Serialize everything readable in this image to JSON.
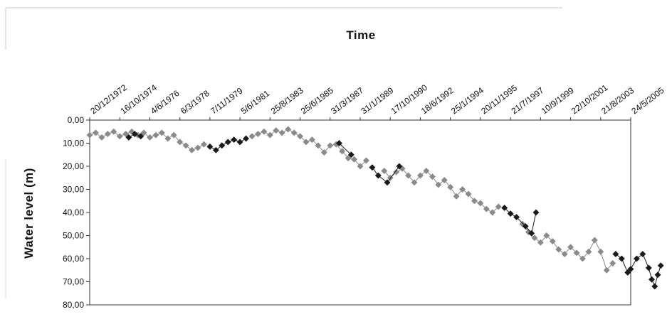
{
  "chart_data": {
    "type": "scatter",
    "title": "",
    "xlabel": "Time",
    "ylabel": "Water level (m)",
    "x_axis_position": "top",
    "y_axis_inverted": true,
    "ylim": [
      0,
      80
    ],
    "y_ticks": [
      "0,00",
      "10,00",
      "20,00",
      "30,00",
      "40,00",
      "50,00",
      "60,00",
      "70,00",
      "80,00"
    ],
    "x_ticks": [
      "20/12/1972",
      "16/10/1974",
      "4/6/1976",
      "6/3/1978",
      "7/11/1979",
      "5/6/1981",
      "25/8/1983",
      "25/6/1985",
      "31/3/1987",
      "31/1/1989",
      "17/10/1990",
      "18/6/1992",
      "25/1/1994",
      "20/11/1995",
      "21/7/1997",
      "10/9/1999",
      "22/10/2001",
      "21/8/2003",
      "24/5/2005"
    ],
    "grid": false,
    "legend": "none",
    "marker": "diamond",
    "colors": {
      "series_gray": "#8a8a8a",
      "series_black": "#1a1a1a"
    },
    "series": [
      {
        "color": "series_gray",
        "points": [
          [
            0.0,
            6.5
          ],
          [
            0.2,
            5.5
          ],
          [
            0.4,
            7.5
          ],
          [
            0.6,
            6.0
          ],
          [
            0.8,
            5.0
          ],
          [
            1.0,
            7.0
          ],
          [
            1.2,
            6.0
          ],
          [
            1.4,
            5.0
          ],
          [
            1.6,
            6.5
          ],
          [
            1.8,
            5.5
          ],
          [
            2.0,
            7.5
          ],
          [
            2.2,
            6.5
          ],
          [
            2.4,
            5.5
          ],
          [
            2.6,
            8.0
          ],
          [
            2.8,
            6.5
          ],
          [
            3.0,
            9.5
          ],
          [
            3.2,
            11.0
          ],
          [
            3.4,
            13.0
          ],
          [
            3.6,
            12.0
          ],
          [
            3.8,
            10.5
          ],
          [
            5.4,
            7.0
          ],
          [
            5.6,
            6.0
          ],
          [
            5.8,
            5.0
          ],
          [
            6.0,
            6.5
          ],
          [
            6.2,
            4.5
          ],
          [
            6.4,
            5.5
          ],
          [
            6.6,
            4.0
          ],
          [
            6.8,
            5.5
          ],
          [
            7.0,
            7.0
          ],
          [
            7.2,
            9.5
          ],
          [
            7.4,
            8.5
          ],
          [
            7.6,
            11.0
          ],
          [
            7.8,
            14.0
          ],
          [
            8.0,
            11.0
          ],
          [
            8.2,
            10.5
          ],
          [
            8.4,
            13.5
          ],
          [
            8.6,
            16.5
          ],
          [
            8.8,
            17.0
          ],
          [
            9.0,
            20.0
          ],
          [
            9.2,
            17.5
          ],
          [
            9.8,
            22.0
          ],
          [
            10.0,
            25.0
          ],
          [
            10.2,
            22.5
          ],
          [
            10.4,
            21.0
          ],
          [
            10.6,
            24.0
          ],
          [
            10.8,
            27.0
          ],
          [
            11.0,
            24.0
          ],
          [
            11.2,
            22.0
          ],
          [
            11.4,
            24.5
          ],
          [
            11.6,
            28.0
          ],
          [
            11.8,
            26.0
          ],
          [
            12.0,
            29.0
          ],
          [
            12.2,
            33.0
          ],
          [
            12.4,
            30.0
          ],
          [
            12.6,
            32.0
          ],
          [
            12.8,
            35.0
          ],
          [
            13.0,
            36.0
          ],
          [
            13.2,
            38.5
          ],
          [
            13.4,
            40.0
          ],
          [
            13.6,
            37.5
          ],
          [
            14.4,
            45.0
          ],
          [
            14.6,
            48.5
          ],
          [
            14.8,
            51.0
          ],
          [
            15.0,
            53.0
          ],
          [
            15.2,
            50.0
          ],
          [
            15.4,
            52.5
          ],
          [
            15.6,
            56.0
          ],
          [
            15.8,
            58.0
          ],
          [
            16.0,
            55.0
          ],
          [
            16.2,
            57.5
          ],
          [
            16.4,
            60.0
          ],
          [
            16.6,
            57.0
          ],
          [
            16.8,
            52.0
          ],
          [
            17.0,
            57.0
          ],
          [
            17.2,
            65.0
          ],
          [
            17.4,
            62.0
          ]
        ]
      },
      {
        "color": "series_black",
        "points": [
          [
            1.3,
            7.5
          ],
          [
            1.5,
            6.0
          ],
          [
            1.7,
            7.0
          ],
          [
            4.0,
            11.5
          ],
          [
            4.2,
            13.0
          ],
          [
            4.4,
            11.0
          ],
          [
            4.6,
            9.5
          ],
          [
            4.8,
            8.5
          ],
          [
            5.0,
            9.5
          ],
          [
            5.2,
            8.0
          ],
          [
            8.3,
            10.0
          ],
          [
            8.7,
            15.0
          ],
          [
            9.4,
            20.5
          ],
          [
            9.6,
            24.0
          ],
          [
            9.9,
            27.0
          ],
          [
            10.3,
            20.0
          ],
          [
            13.8,
            38.0
          ],
          [
            14.0,
            40.5
          ],
          [
            14.2,
            42.0
          ],
          [
            14.5,
            46.0
          ],
          [
            14.7,
            49.0
          ],
          [
            14.85,
            40.0
          ],
          [
            17.5,
            58.0
          ],
          [
            17.7,
            60.0
          ],
          [
            17.9,
            66.0
          ],
          [
            18.0,
            64.5
          ],
          [
            18.2,
            60.0
          ],
          [
            18.4,
            58.0
          ],
          [
            18.6,
            64.0
          ],
          [
            18.7,
            69.0
          ],
          [
            18.8,
            72.0
          ],
          [
            18.9,
            67.0
          ],
          [
            19.0,
            63.0
          ]
        ]
      }
    ]
  }
}
